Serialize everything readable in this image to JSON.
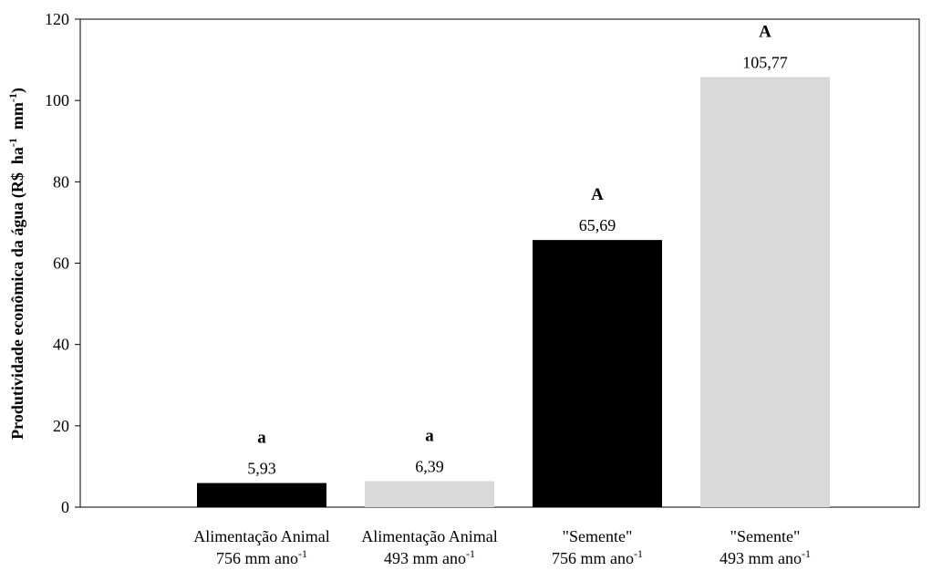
{
  "chart_data": {
    "type": "bar",
    "categories": [
      {
        "line1": "Alimentação Animal",
        "line2_main": "756 mm ano",
        "line2_sup": "-1"
      },
      {
        "line1": "Alimentação Animal",
        "line2_main": "493 mm ano",
        "line2_sup": "-1"
      },
      {
        "line1": "\"Semente\"",
        "line2_main": "756 mm ano",
        "line2_sup": "-1"
      },
      {
        "line1": "\"Semente\"",
        "line2_main": "493 mm ano",
        "line2_sup": "-1"
      }
    ],
    "values": [
      5.93,
      6.39,
      65.69,
      105.77
    ],
    "data_labels": [
      "5,93",
      "6,39",
      "65,69",
      "105,77"
    ],
    "significance_letters": [
      "a",
      "a",
      "A",
      "A"
    ],
    "bar_colors": [
      "#000000",
      "#d9d9d9",
      "#000000",
      "#d9d9d9"
    ],
    "ylabel": {
      "parts": [
        {
          "text": "Produtividade econômica da água (R$  ha",
          "sup": false
        },
        {
          "text": "-1",
          "sup": true
        },
        {
          "text": "  mm",
          "sup": false
        },
        {
          "text": "-1",
          "sup": true
        },
        {
          "text": ")",
          "sup": false
        }
      ]
    },
    "ylim": [
      0,
      120
    ],
    "yticks": [
      0,
      20,
      40,
      60,
      80,
      100,
      120
    ],
    "grid": false,
    "legend": "none"
  }
}
